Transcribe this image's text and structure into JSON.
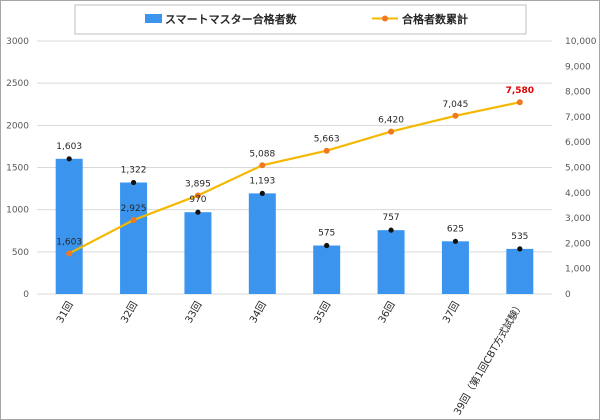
{
  "chart_data": {
    "type": "bar+line",
    "categories": [
      "31回",
      "32回",
      "33回",
      "34回",
      "35回",
      "36回",
      "37回",
      "39回（第1回CBT方式試験）"
    ],
    "series": [
      {
        "name": "スマートマスター合格者数",
        "type": "bar",
        "axis": "left",
        "color": "#3b95ee",
        "values": [
          1603,
          1322,
          970,
          1193,
          575,
          757,
          625,
          535
        ],
        "labels": [
          "1,603",
          "1,322",
          "970",
          "1,193",
          "575",
          "757",
          "625",
          "535"
        ]
      },
      {
        "name": "合格者数累計",
        "type": "line",
        "axis": "right",
        "color": "#f5b800",
        "marker_color": "#f07820",
        "values": [
          1603,
          2925,
          3895,
          5088,
          5663,
          6420,
          7045,
          7580
        ],
        "labels": [
          "1,603",
          "2,925",
          "3,895",
          "5,088",
          "5,663",
          "6,420",
          "7,045",
          "7,580"
        ],
        "highlight_last_label_color": "#e00000"
      }
    ],
    "y_left": {
      "lim": [
        0,
        3000
      ],
      "ticks": [
        "0",
        "500",
        "1000",
        "1500",
        "2000",
        "2500",
        "3000"
      ]
    },
    "y_right": {
      "lim": [
        0,
        10000
      ],
      "ticks": [
        "0",
        "1,000",
        "2,000",
        "3,000",
        "4,000",
        "5,000",
        "6,000",
        "7,000",
        "8,000",
        "9,000",
        "10,000"
      ]
    },
    "grid": true,
    "legend": "top"
  }
}
